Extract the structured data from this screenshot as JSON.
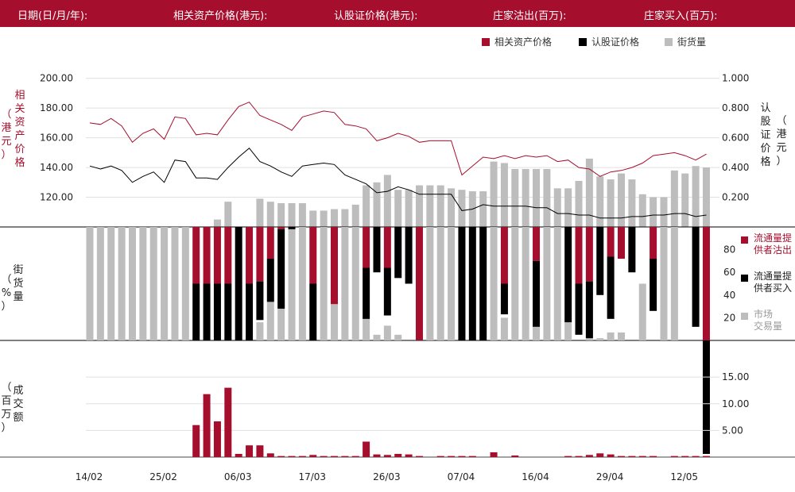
{
  "header": {
    "date_label": "日期(日/月/年):",
    "underlying_label": "相关资产价格(港元):",
    "warrant_label": "认股证价格(港元):",
    "dealer_sell_label": "庄家沽出(百万):",
    "dealer_buy_label": "庄家买入(百万):"
  },
  "legend": {
    "underlying": "相关资产价格",
    "warrant": "认股证价格",
    "outstanding": "街货量"
  },
  "axis_titles": {
    "left_top": [
      "相",
      "关",
      "资",
      "产",
      "价",
      "格"
    ],
    "left_top_unit": [
      "（",
      "港",
      "元",
      "）"
    ],
    "right_top": [
      "认",
      "股",
      "证",
      "价",
      "格"
    ],
    "right_top_unit": [
      "（",
      "港",
      "元",
      "）"
    ],
    "left_mid": [
      "街",
      "货",
      "量"
    ],
    "left_mid_unit": [
      "（",
      "%",
      "）"
    ],
    "left_bottom": [
      "成",
      "交",
      "额"
    ],
    "left_bottom_unit": [
      "（",
      "百",
      "万",
      "）"
    ]
  },
  "mid_legend": {
    "sell": [
      "流通量提",
      "供者沽出"
    ],
    "buy": [
      "流通量提",
      "供者买入"
    ],
    "market": [
      "市场",
      "交易量"
    ]
  },
  "colors": {
    "crimson": "#a50f2d",
    "black": "#000000",
    "gray": "#bdbdbd",
    "grid": "#e0e0e0"
  },
  "chart_data": {
    "type": "bar",
    "x_tick_labels": [
      "14/02",
      "25/02",
      "06/03",
      "17/03",
      "26/03",
      "07/04",
      "16/04",
      "29/04",
      "12/05"
    ],
    "x_tick_index": [
      0,
      7,
      14,
      21,
      28,
      35,
      42,
      49,
      56
    ],
    "top_panel": {
      "left_axis": {
        "ticks": [
          "120.00",
          "140.00",
          "160.00",
          "180.00",
          "200.00"
        ],
        "ylim": [
          100,
          210
        ]
      },
      "right_axis": {
        "ticks": [
          "0.200",
          "0.400",
          "0.600",
          "0.800",
          "1.000"
        ],
        "ylim": [
          0.0,
          1.1
        ]
      },
      "underlying_price": [
        170,
        169,
        173,
        168,
        157,
        163,
        166,
        159,
        174,
        173,
        162,
        163,
        162,
        172,
        181,
        184,
        175,
        172,
        169,
        165,
        174,
        176,
        178,
        177,
        169,
        168,
        166,
        158,
        160,
        163,
        161,
        157,
        158,
        158,
        158,
        135,
        141,
        147,
        146,
        148,
        146,
        148,
        147,
        148,
        144,
        145,
        140,
        139,
        134,
        137,
        138,
        140,
        143,
        148,
        149,
        150,
        148,
        145,
        149
      ],
      "warrant_price": [
        0.41,
        0.39,
        0.41,
        0.38,
        0.3,
        0.34,
        0.37,
        0.3,
        0.45,
        0.44,
        0.33,
        0.33,
        0.32,
        0.4,
        0.47,
        0.53,
        0.44,
        0.41,
        0.37,
        0.34,
        0.41,
        0.42,
        0.43,
        0.42,
        0.35,
        0.32,
        0.29,
        0.23,
        0.24,
        0.27,
        0.25,
        0.22,
        0.22,
        0.22,
        0.22,
        0.11,
        0.12,
        0.15,
        0.14,
        0.14,
        0.14,
        0.14,
        0.13,
        0.13,
        0.09,
        0.09,
        0.08,
        0.08,
        0.06,
        0.06,
        0.06,
        0.07,
        0.07,
        0.08,
        0.08,
        0.09,
        0.09,
        0.07,
        0.08
      ],
      "outstanding": [
        null,
        null,
        null,
        null,
        null,
        null,
        null,
        null,
        null,
        null,
        null,
        null,
        0.05,
        0.17,
        null,
        null,
        0.19,
        0.17,
        0.16,
        0.16,
        0.16,
        0.11,
        0.11,
        0.12,
        0.12,
        0.15,
        0.28,
        0.3,
        0.35,
        0.25,
        0.25,
        0.28,
        0.28,
        0.28,
        0.26,
        0.25,
        0.24,
        0.24,
        0.44,
        0.43,
        0.39,
        0.39,
        0.39,
        0.39,
        0.26,
        0.26,
        0.31,
        0.46,
        0.34,
        0.32,
        0.36,
        0.32,
        0.22,
        0.2,
        0.2,
        0.38,
        0.36,
        0.41,
        0.4
      ]
    },
    "mid_panel": {
      "ticks": [
        "20",
        "40",
        "60",
        "80"
      ],
      "ylim": [
        0,
        100
      ],
      "dealer_sell": [
        0,
        0,
        0,
        0,
        0,
        0,
        0,
        0,
        0,
        0,
        50,
        50,
        50,
        50,
        0,
        50,
        48,
        28,
        2,
        0,
        0,
        50,
        0,
        68,
        0,
        0,
        36,
        0,
        36,
        0,
        0,
        100,
        0,
        0,
        0,
        0,
        0,
        0,
        0,
        50,
        0,
        0,
        30,
        0,
        0,
        0,
        50,
        48,
        0,
        26,
        28,
        0,
        0,
        28,
        0,
        0,
        0,
        0,
        100
      ],
      "dealer_buy": [
        0,
        0,
        0,
        0,
        0,
        0,
        0,
        0,
        0,
        0,
        50,
        50,
        50,
        50,
        100,
        50,
        34,
        38,
        70,
        2,
        0,
        50,
        0,
        0,
        0,
        0,
        45,
        40,
        42,
        45,
        50,
        0,
        0,
        0,
        0,
        100,
        100,
        100,
        0,
        27,
        0,
        0,
        58,
        0,
        0,
        84,
        45,
        50,
        60,
        55,
        0,
        40,
        0,
        46,
        0,
        0,
        0,
        88,
        100
      ],
      "market": [
        100,
        100,
        100,
        100,
        100,
        100,
        100,
        100,
        100,
        100,
        0,
        0,
        1,
        2,
        0,
        0,
        16,
        34,
        38,
        98,
        100,
        0,
        100,
        32,
        100,
        100,
        20,
        5,
        13,
        5,
        0,
        0,
        100,
        100,
        100,
        0,
        0,
        0,
        100,
        20,
        100,
        100,
        12,
        100,
        100,
        16,
        0,
        8,
        2,
        7,
        7,
        0,
        50,
        0,
        100,
        100,
        0,
        0,
        0
      ]
    },
    "bottom_panel": {
      "ticks": [
        "5.00",
        "10.00",
        "15.00"
      ],
      "ylim": [
        0,
        18
      ],
      "turnover": [
        0,
        0,
        0,
        0,
        0,
        0,
        0,
        0,
        0,
        0,
        6.0,
        11.8,
        6.7,
        13.0,
        0.6,
        2.2,
        2.2,
        0.7,
        0.2,
        0.2,
        0.2,
        0.4,
        0.2,
        0.2,
        0.2,
        0.2,
        2.9,
        0.5,
        0.4,
        0.6,
        0.5,
        0.2,
        0.0,
        0.2,
        0.2,
        0.2,
        0.2,
        0.0,
        0.9,
        0.0,
        0.3,
        0.0,
        0.0,
        0.0,
        0.0,
        0.2,
        0.2,
        0.4,
        0.7,
        0.5,
        0.2,
        0.2,
        0.2,
        0.2,
        0.0,
        0.2,
        0.2,
        0.2,
        0.2
      ]
    }
  }
}
